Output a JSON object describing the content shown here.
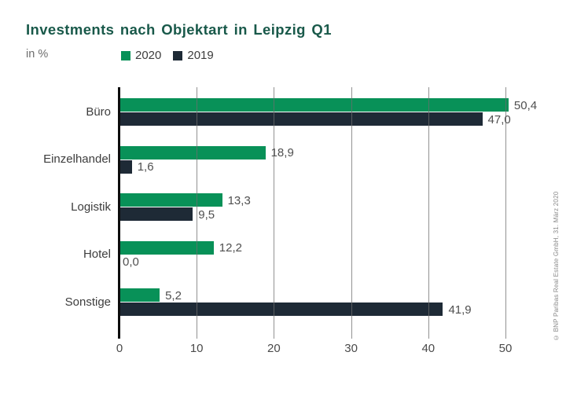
{
  "header": {
    "title": "Investments nach Objektart in Leipzig Q1",
    "unit_label": "in %",
    "title_color": "#19594a"
  },
  "legend": [
    {
      "label": "2020",
      "color": "#089158"
    },
    {
      "label": "2019",
      "color": "#1e2a36"
    }
  ],
  "chart_data": {
    "type": "bar",
    "orientation": "horizontal",
    "title": "Investments nach Objektart in Leipzig Q1",
    "xlabel": "in %",
    "categories": [
      "Büro",
      "Einzelhandel",
      "Logistik",
      "Hotel",
      "Sonstige"
    ],
    "series": [
      {
        "name": "2020",
        "color": "#089158",
        "values": [
          50.4,
          18.9,
          13.3,
          12.2,
          5.2
        ],
        "labels": [
          "50,4",
          "18,9",
          "13,3",
          "12,2",
          "5,2"
        ]
      },
      {
        "name": "2019",
        "color": "#1e2a36",
        "values": [
          47.0,
          1.6,
          9.5,
          0.0,
          41.9
        ],
        "labels": [
          "47,0",
          "1,6",
          "9,5",
          "0,0",
          "41,9"
        ]
      }
    ],
    "xlim": [
      0,
      52
    ],
    "xticks": [
      0,
      10,
      20,
      30,
      40,
      50
    ],
    "grid": "vertical",
    "legend_position": "top",
    "decimal_separator": ","
  },
  "footer": {
    "copyright": "© BNP Paribas Real Estate GmbH, 31. März 2020"
  }
}
